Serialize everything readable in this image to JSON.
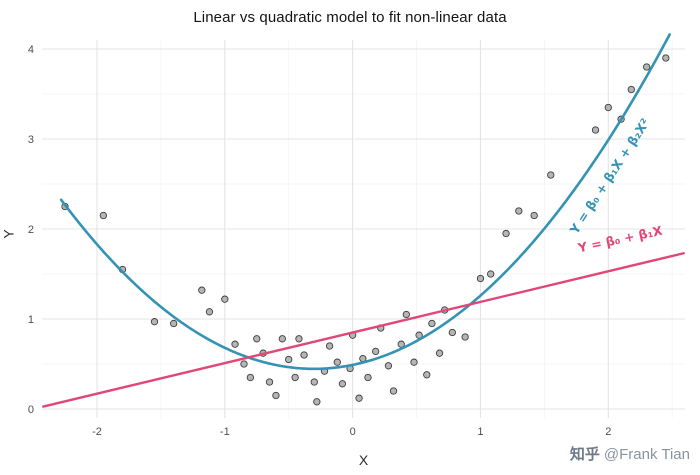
{
  "watermark": {
    "logo": "知乎",
    "handle": "@Frank Tian"
  },
  "chart_data": {
    "type": "scatter",
    "title": "Linear vs quadratic model to fit non-linear data",
    "xlabel": "X",
    "ylabel": "Y",
    "xlim": [
      -2.43,
      2.6
    ],
    "ylim": [
      -0.1,
      4.1
    ],
    "x_ticks": [
      -2,
      -1,
      0,
      1,
      2
    ],
    "y_ticks": [
      0,
      1,
      2,
      3,
      4
    ],
    "x_minor_gridlines": [
      -1.5,
      -0.5,
      0.5,
      1.5,
      2.5
    ],
    "y_minor_gridlines": [
      0.5,
      1.5,
      2.5,
      3.5
    ],
    "grid": {
      "major": "#e4e4e4",
      "minor": "#f3f3f3"
    },
    "legend": "none",
    "point_style": {
      "fill": "#b5b5b5",
      "stroke": "#3d3d3d",
      "radius": 3.2
    },
    "points": [
      [
        -2.25,
        2.25
      ],
      [
        -1.95,
        2.15
      ],
      [
        -1.8,
        1.55
      ],
      [
        -1.55,
        0.97
      ],
      [
        -1.4,
        0.95
      ],
      [
        -1.18,
        1.32
      ],
      [
        -1.12,
        1.08
      ],
      [
        -1.0,
        1.22
      ],
      [
        -0.92,
        0.72
      ],
      [
        -0.85,
        0.5
      ],
      [
        -0.8,
        0.35
      ],
      [
        -0.75,
        0.78
      ],
      [
        -0.7,
        0.62
      ],
      [
        -0.65,
        0.3
      ],
      [
        -0.6,
        0.15
      ],
      [
        -0.55,
        0.78
      ],
      [
        -0.5,
        0.55
      ],
      [
        -0.45,
        0.35
      ],
      [
        -0.42,
        0.78
      ],
      [
        -0.38,
        0.6
      ],
      [
        -0.3,
        0.3
      ],
      [
        -0.28,
        0.08
      ],
      [
        -0.22,
        0.42
      ],
      [
        -0.18,
        0.7
      ],
      [
        -0.12,
        0.52
      ],
      [
        -0.08,
        0.28
      ],
      [
        -0.02,
        0.45
      ],
      [
        0.0,
        0.82
      ],
      [
        0.05,
        0.12
      ],
      [
        0.08,
        0.56
      ],
      [
        0.12,
        0.35
      ],
      [
        0.18,
        0.64
      ],
      [
        0.22,
        0.9
      ],
      [
        0.28,
        0.48
      ],
      [
        0.32,
        0.2
      ],
      [
        0.38,
        0.72
      ],
      [
        0.42,
        1.05
      ],
      [
        0.48,
        0.52
      ],
      [
        0.52,
        0.82
      ],
      [
        0.58,
        0.38
      ],
      [
        0.62,
        0.95
      ],
      [
        0.68,
        0.62
      ],
      [
        0.72,
        1.1
      ],
      [
        0.78,
        0.85
      ],
      [
        0.88,
        0.8
      ],
      [
        1.0,
        1.45
      ],
      [
        1.08,
        1.5
      ],
      [
        1.2,
        1.95
      ],
      [
        1.3,
        2.2
      ],
      [
        1.42,
        2.15
      ],
      [
        1.55,
        2.6
      ],
      [
        1.9,
        3.1
      ],
      [
        2.0,
        3.35
      ],
      [
        2.1,
        3.22
      ],
      [
        2.18,
        3.55
      ],
      [
        2.3,
        3.8
      ],
      [
        2.45,
        3.9
      ]
    ],
    "series": [
      {
        "name": "quadratic-fit",
        "model": "Y = β₀ + β₁X + β₂X²",
        "color": "#3492b5",
        "coeffs": [
          0.49,
          0.29,
          0.48
        ],
        "x_range": [
          -2.28,
          2.48
        ],
        "width": 2.6
      },
      {
        "name": "linear-fit",
        "model": "Y = β₀ + β₁X",
        "color": "#e04776",
        "coeffs": [
          0.85,
          0.34
        ],
        "x_range": [
          -2.42,
          2.59
        ],
        "width": 2.4
      }
    ],
    "annotations": [
      {
        "text": "Y = β₀ + β₁X + β₂X²",
        "x": 2.04,
        "y": 2.56,
        "rotation": -57,
        "color": "#3492b5"
      },
      {
        "text": "Y = β₀ + β₁X",
        "x": 2.1,
        "y": 1.84,
        "rotation": -12,
        "color": "#e04776"
      }
    ]
  }
}
